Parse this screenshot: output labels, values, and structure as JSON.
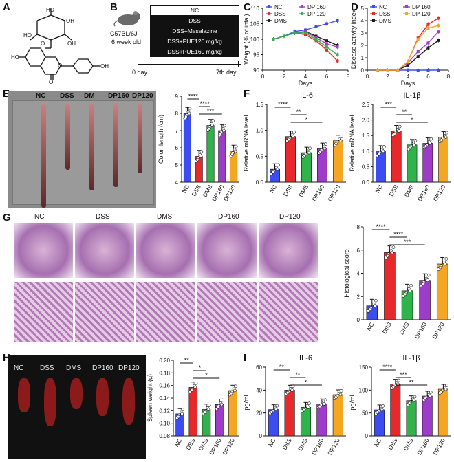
{
  "panel_labels": {
    "A": "A",
    "B": "B",
    "C": "C",
    "D": "D",
    "E": "E",
    "F": "F",
    "G": "G",
    "H": "H",
    "I": "I"
  },
  "panelB": {
    "mouse": "C57BL/6J",
    "age": "6 week old",
    "groups": [
      "NC",
      "DSS",
      "DSS+Mesalazine",
      "DSS+PUE120 mg/kg",
      "DSS+PUE160 mg/kg"
    ],
    "start": "0 day",
    "end": "7th day"
  },
  "colors": {
    "NC": "#3b4cf0",
    "DSS": "#e8292b",
    "DMS": "#2fb34a",
    "DP160": "#9c3cc8",
    "DP120": "#f5a623",
    "black": "#1a1a1a"
  },
  "E_photo_labels": [
    "NC",
    "DSS",
    "DM",
    "DP160",
    "DP120"
  ],
  "G_labels": [
    "NC",
    "DSS",
    "DMS",
    "DP160",
    "DP120"
  ],
  "H_photo_labels": [
    "NC",
    "DSS",
    "DMS",
    "DP160",
    "DP120"
  ],
  "chart_data": [
    {
      "id": "C",
      "type": "line",
      "xlabel": "Days",
      "ylabel": "Weight (% of intal)",
      "xlim": [
        0,
        8
      ],
      "ylim": [
        90,
        110
      ],
      "xticks": [
        0,
        2,
        4,
        6,
        8
      ],
      "yticks": [
        90,
        95,
        100,
        105,
        110
      ],
      "x": [
        1,
        2,
        3,
        4,
        5,
        6,
        7
      ],
      "series": [
        {
          "name": "NC",
          "color": "#3b4cf0",
          "values": [
            100,
            101,
            102.5,
            103,
            104,
            105,
            106
          ]
        },
        {
          "name": "DSS",
          "color": "#e8292b",
          "values": [
            100,
            101,
            102,
            101.5,
            99.5,
            96.5,
            93
          ]
        },
        {
          "name": "DMS",
          "color": "#1a1a1a",
          "values": [
            100,
            101,
            102,
            102.5,
            101,
            99.5,
            98
          ]
        },
        {
          "name": "DP 160",
          "color": "#9c3cc8",
          "values": [
            100,
            101,
            102,
            102.5,
            100.5,
            98.5,
            97.5
          ]
        },
        {
          "name": "DP 120",
          "color": "#2fb34a",
          "values": [
            100,
            101,
            102,
            102,
            100,
            97.5,
            95
          ]
        }
      ],
      "legend": [
        "NC",
        "DSS",
        "DMS",
        "DP 160",
        "DP 120"
      ]
    },
    {
      "id": "D",
      "type": "line",
      "xlabel": "Days",
      "ylabel": "Disease activity index",
      "xlim": [
        0,
        8
      ],
      "ylim": [
        0,
        5
      ],
      "xticks": [
        0,
        2,
        4,
        6,
        8
      ],
      "yticks": [
        0,
        1,
        2,
        3,
        4,
        5
      ],
      "x": [
        1,
        2,
        3,
        4,
        5,
        6,
        7
      ],
      "series": [
        {
          "name": "NC",
          "color": "#3b4cf0",
          "values": [
            0,
            0,
            0,
            0,
            0,
            0,
            0
          ]
        },
        {
          "name": "DSS",
          "color": "#e8292b",
          "values": [
            0,
            0,
            0,
            0.7,
            2.6,
            3.7,
            4.2
          ]
        },
        {
          "name": "DMS",
          "color": "#1a1a1a",
          "values": [
            0,
            0,
            0,
            0.4,
            1.1,
            1.8,
            2.4
          ]
        },
        {
          "name": "DP 160",
          "color": "#9c3cc8",
          "values": [
            0,
            0,
            0,
            0.6,
            1.5,
            2.2,
            3.1
          ]
        },
        {
          "name": "DP 120",
          "color": "#f5a623",
          "values": [
            0,
            0,
            0,
            0.7,
            2.5,
            3.4,
            3.6
          ]
        }
      ],
      "legend": [
        "NC",
        "DSS",
        "DMS",
        "DP 160",
        "DP 120"
      ]
    },
    {
      "id": "E",
      "type": "bar",
      "ylabel": "Colon length (cm)",
      "ylim": [
        4,
        9
      ],
      "yticks": [
        4,
        5,
        6,
        7,
        8,
        9
      ],
      "categories": [
        "NC",
        "DSS",
        "DMS",
        "DP160",
        "DP120"
      ],
      "values": [
        8.0,
        5.5,
        7.3,
        7.0,
        5.8
      ],
      "sig": [
        "****",
        "****",
        "***"
      ]
    },
    {
      "id": "F1",
      "type": "bar",
      "title": "IL-6",
      "ylabel": "Relative mRNA level",
      "ylim": [
        0,
        1.5
      ],
      "yticks": [
        0.0,
        0.5,
        1.0,
        1.5
      ],
      "categories": [
        "NC",
        "DSS",
        "DMS",
        "DP160",
        "DP120"
      ],
      "values": [
        0.25,
        0.88,
        0.57,
        0.65,
        0.8
      ],
      "sig": [
        "****",
        "**",
        "*"
      ]
    },
    {
      "id": "F2",
      "type": "bar",
      "title": "IL-1β",
      "ylabel": "Relative mRNA level",
      "ylim": [
        0,
        2.5
      ],
      "yticks": [
        0.0,
        0.5,
        1.0,
        1.5,
        2.0,
        2.5
      ],
      "categories": [
        "NC",
        "DSS",
        "DMS",
        "DP160",
        "DP120"
      ],
      "values": [
        1.0,
        1.65,
        1.2,
        1.25,
        1.45
      ],
      "sig": [
        "***",
        "**",
        "*"
      ]
    },
    {
      "id": "G",
      "type": "bar",
      "ylabel": "Histological score",
      "ylim": [
        0,
        8
      ],
      "yticks": [
        0,
        2,
        4,
        6,
        8
      ],
      "categories": [
        "NC",
        "DSS",
        "DMS",
        "DP160",
        "DP120"
      ],
      "values": [
        1.2,
        5.8,
        2.5,
        3.4,
        4.8
      ],
      "sig": [
        "****",
        "****",
        "***"
      ]
    },
    {
      "id": "H",
      "type": "bar",
      "ylabel": "Spleen weight (g)",
      "ylim": [
        0.08,
        0.2
      ],
      "yticks": [
        0.08,
        0.1,
        0.12,
        0.14,
        0.16,
        0.18,
        0.2
      ],
      "categories": [
        "NC",
        "DSS",
        "DMS",
        "DP160",
        "DP120"
      ],
      "values": [
        0.115,
        0.157,
        0.122,
        0.13,
        0.152
      ],
      "sig": [
        "**",
        "*",
        "*"
      ]
    },
    {
      "id": "I1",
      "type": "bar",
      "title": "IL-6",
      "ylabel": "pg/mL",
      "ylim": [
        0,
        60
      ],
      "yticks": [
        0,
        20,
        40,
        60
      ],
      "categories": [
        "NC",
        "DSS",
        "DMS",
        "DP160",
        "DP120"
      ],
      "values": [
        23,
        40,
        25,
        28,
        36
      ],
      "sig": [
        "**",
        "**",
        "*"
      ]
    },
    {
      "id": "I2",
      "type": "bar",
      "title": "IL-1β",
      "ylabel": "pg/mL",
      "ylim": [
        0,
        150
      ],
      "yticks": [
        0,
        50,
        100,
        150
      ],
      "categories": [
        "NC",
        "DSS",
        "DMS",
        "DP160",
        "DP120"
      ],
      "values": [
        57,
        113,
        77,
        87,
        102
      ],
      "sig": [
        "****",
        "***",
        "**"
      ]
    }
  ]
}
